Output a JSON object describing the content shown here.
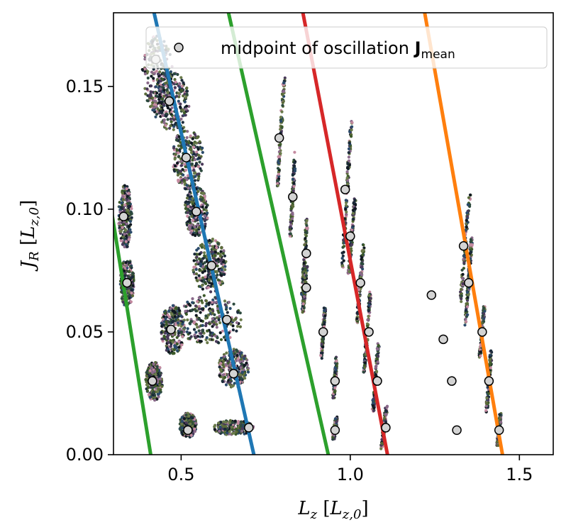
{
  "chart_data": {
    "type": "scatter",
    "title": "",
    "xlabel": "L_z [L_{z,0}]",
    "ylabel": "J_R [L_{z,0}]",
    "xlabel_parts": {
      "main": "L",
      "sub": "z",
      "bracket_main": "L",
      "bracket_sub": "z,0"
    },
    "ylabel_parts": {
      "main": "J",
      "sub": "R",
      "bracket_main": "L",
      "bracket_sub": "z,0"
    },
    "xlim": [
      0.3,
      1.6
    ],
    "ylim": [
      0.0,
      0.18
    ],
    "xticks": [
      {
        "value": 0.5,
        "label": "0.5"
      },
      {
        "value": 1.0,
        "label": "1.0"
      },
      {
        "value": 1.5,
        "label": "1.5"
      }
    ],
    "yticks": [
      {
        "value": 0.0,
        "label": "0.00"
      },
      {
        "value": 0.05,
        "label": "0.05"
      },
      {
        "value": 0.1,
        "label": "0.10"
      },
      {
        "value": 0.15,
        "label": "0.15"
      }
    ],
    "legend": {
      "placement": "top-right",
      "entries": [
        {
          "marker": "circle",
          "label": "midpoint of oscillation",
          "label_bold": "J",
          "label_sub": "mean"
        }
      ]
    },
    "lines": [
      {
        "color": "#2ca02c",
        "x": [
          0.2,
          0.41
        ],
        "y": [
          0.18,
          0.0
        ]
      },
      {
        "color": "#1f77b4",
        "x": [
          0.42,
          0.715
        ],
        "y": [
          0.18,
          0.0
        ]
      },
      {
        "color": "#2ca02c",
        "x": [
          0.64,
          0.935
        ],
        "y": [
          0.18,
          0.0
        ]
      },
      {
        "color": "#d62728",
        "x": [
          0.86,
          1.11
        ],
        "y": [
          0.18,
          0.0
        ]
      },
      {
        "color": "#ff7f0e",
        "x": [
          1.22,
          1.45
        ],
        "y": [
          0.18,
          0.0
        ]
      }
    ],
    "midpoints": [
      {
        "x": 0.425,
        "y": 0.161
      },
      {
        "x": 0.465,
        "y": 0.144
      },
      {
        "x": 0.515,
        "y": 0.121
      },
      {
        "x": 0.545,
        "y": 0.099
      },
      {
        "x": 0.59,
        "y": 0.077
      },
      {
        "x": 0.635,
        "y": 0.055
      },
      {
        "x": 0.655,
        "y": 0.033
      },
      {
        "x": 0.7,
        "y": 0.011
      },
      {
        "x": 0.52,
        "y": 0.01
      },
      {
        "x": 0.415,
        "y": 0.03
      },
      {
        "x": 0.47,
        "y": 0.051
      },
      {
        "x": 0.34,
        "y": 0.07
      },
      {
        "x": 0.33,
        "y": 0.097
      },
      {
        "x": 0.79,
        "y": 0.129
      },
      {
        "x": 0.83,
        "y": 0.105
      },
      {
        "x": 0.87,
        "y": 0.082
      },
      {
        "x": 0.87,
        "y": 0.068
      },
      {
        "x": 0.92,
        "y": 0.05
      },
      {
        "x": 0.955,
        "y": 0.03
      },
      {
        "x": 0.955,
        "y": 0.01
      },
      {
        "x": 0.985,
        "y": 0.108
      },
      {
        "x": 1.0,
        "y": 0.089
      },
      {
        "x": 1.03,
        "y": 0.07
      },
      {
        "x": 1.055,
        "y": 0.05
      },
      {
        "x": 1.08,
        "y": 0.03
      },
      {
        "x": 1.105,
        "y": 0.011
      },
      {
        "x": 1.335,
        "y": 0.085
      },
      {
        "x": 1.35,
        "y": 0.07
      },
      {
        "x": 1.39,
        "y": 0.05
      },
      {
        "x": 1.41,
        "y": 0.03
      },
      {
        "x": 1.44,
        "y": 0.01
      },
      {
        "x": 1.24,
        "y": 0.065
      },
      {
        "x": 1.275,
        "y": 0.047
      },
      {
        "x": 1.3,
        "y": 0.03
      },
      {
        "x": 1.315,
        "y": 0.01
      }
    ],
    "point_clouds": [
      {
        "shape": "blob",
        "cx": 0.43,
        "cy": 0.155,
        "rx": 0.045,
        "ry": 0.016,
        "slope": 0
      },
      {
        "shape": "blob",
        "cx": 0.47,
        "cy": 0.144,
        "rx": 0.055,
        "ry": 0.012,
        "slope": 0
      },
      {
        "shape": "blob",
        "cx": 0.52,
        "cy": 0.121,
        "rx": 0.045,
        "ry": 0.013,
        "slope": 0
      },
      {
        "shape": "blob",
        "cx": 0.545,
        "cy": 0.099,
        "rx": 0.035,
        "ry": 0.01,
        "slope": 0
      },
      {
        "shape": "blob",
        "cx": 0.585,
        "cy": 0.077,
        "rx": 0.05,
        "ry": 0.011,
        "slope": 0
      },
      {
        "shape": "blob",
        "cx": 0.58,
        "cy": 0.055,
        "rx": 0.1,
        "ry": 0.01,
        "slope": 0
      },
      {
        "shape": "blob",
        "cx": 0.655,
        "cy": 0.035,
        "rx": 0.045,
        "ry": 0.008,
        "slope": 0
      },
      {
        "shape": "blob",
        "cx": 0.655,
        "cy": 0.011,
        "rx": 0.06,
        "ry": 0.003,
        "slope": 0
      },
      {
        "shape": "blob",
        "cx": 0.52,
        "cy": 0.012,
        "rx": 0.025,
        "ry": 0.005,
        "slope": 0
      },
      {
        "shape": "blob",
        "cx": 0.42,
        "cy": 0.03,
        "rx": 0.025,
        "ry": 0.008,
        "slope": 0
      },
      {
        "shape": "blob",
        "cx": 0.475,
        "cy": 0.051,
        "rx": 0.035,
        "ry": 0.01,
        "slope": 0
      },
      {
        "shape": "blob",
        "cx": 0.34,
        "cy": 0.07,
        "rx": 0.02,
        "ry": 0.01,
        "slope": 0
      },
      {
        "shape": "blob",
        "cx": 0.335,
        "cy": 0.097,
        "rx": 0.02,
        "ry": 0.013,
        "slope": 0
      },
      {
        "shape": "streak",
        "cx": 0.795,
        "cy": 0.132,
        "rx": 0.022,
        "ry": 0.022,
        "slope": -0.3
      },
      {
        "shape": "streak",
        "cx": 0.83,
        "cy": 0.106,
        "rx": 0.015,
        "ry": 0.017,
        "slope": -0.3
      },
      {
        "shape": "streak",
        "cx": 0.865,
        "cy": 0.08,
        "rx": 0.015,
        "ry": 0.015,
        "slope": -0.3
      },
      {
        "shape": "streak",
        "cx": 0.865,
        "cy": 0.067,
        "rx": 0.012,
        "ry": 0.009,
        "slope": -0.3
      },
      {
        "shape": "streak",
        "cx": 0.92,
        "cy": 0.05,
        "rx": 0.012,
        "ry": 0.01,
        "slope": -0.3
      },
      {
        "shape": "streak",
        "cx": 0.955,
        "cy": 0.031,
        "rx": 0.01,
        "ry": 0.008,
        "slope": -0.3
      },
      {
        "shape": "streak",
        "cx": 0.955,
        "cy": 0.011,
        "rx": 0.01,
        "ry": 0.004,
        "slope": -0.3
      },
      {
        "shape": "streak",
        "cx": 0.99,
        "cy": 0.106,
        "rx": 0.03,
        "ry": 0.03,
        "slope": -0.3
      },
      {
        "shape": "streak",
        "cx": 1.005,
        "cy": 0.089,
        "rx": 0.02,
        "ry": 0.015,
        "slope": -0.3
      },
      {
        "shape": "streak",
        "cx": 1.03,
        "cy": 0.07,
        "rx": 0.02,
        "ry": 0.016,
        "slope": -0.3
      },
      {
        "shape": "streak",
        "cx": 1.05,
        "cy": 0.05,
        "rx": 0.02,
        "ry": 0.016,
        "slope": -0.3
      },
      {
        "shape": "streak",
        "cx": 1.075,
        "cy": 0.031,
        "rx": 0.018,
        "ry": 0.014,
        "slope": -0.3
      },
      {
        "shape": "streak",
        "cx": 1.1,
        "cy": 0.011,
        "rx": 0.015,
        "ry": 0.008,
        "slope": -0.3
      },
      {
        "shape": "streak",
        "cx": 1.34,
        "cy": 0.085,
        "rx": 0.03,
        "ry": 0.022,
        "slope": -0.3
      },
      {
        "shape": "streak",
        "cx": 1.35,
        "cy": 0.07,
        "rx": 0.02,
        "ry": 0.018,
        "slope": -0.3
      },
      {
        "shape": "streak",
        "cx": 1.39,
        "cy": 0.05,
        "rx": 0.015,
        "ry": 0.01,
        "slope": -0.3
      },
      {
        "shape": "streak",
        "cx": 1.41,
        "cy": 0.03,
        "rx": 0.015,
        "ry": 0.012,
        "slope": -0.3
      },
      {
        "shape": "streak",
        "cx": 1.44,
        "cy": 0.01,
        "rx": 0.01,
        "ry": 0.006,
        "slope": -0.3
      }
    ],
    "cloud_colors": [
      "#1b2a3a",
      "#2d4a3e",
      "#3d5a2a",
      "#5b6b3a",
      "#4a3a5a",
      "#8a6a8a",
      "#c48aa0",
      "#2a4a6a",
      "#6a7a4a",
      "#101820"
    ]
  }
}
